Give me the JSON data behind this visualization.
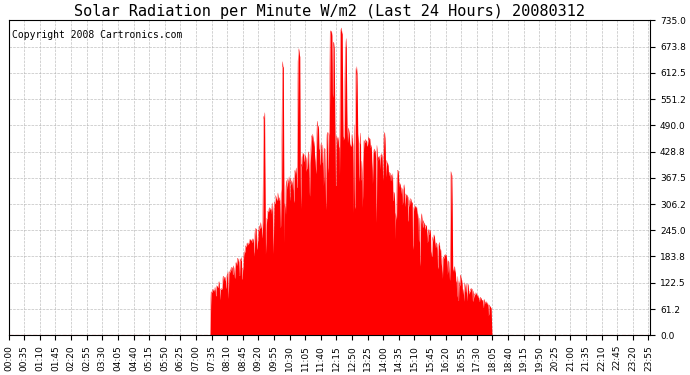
{
  "title": "Solar Radiation per Minute W/m2 (Last 24 Hours) 20080312",
  "copyright": "Copyright 2008 Cartronics.com",
  "yticks": [
    0.0,
    61.2,
    122.5,
    183.8,
    245.0,
    306.2,
    367.5,
    428.8,
    490.0,
    551.2,
    612.5,
    673.8,
    735.0
  ],
  "ymin": 0.0,
  "ymax": 735.0,
  "fill_color": "#ff0000",
  "line_color": "#ff0000",
  "dashed_line_color": "#ff0000",
  "grid_color": "#b0b0b0",
  "background_color": "#ffffff",
  "title_fontsize": 11,
  "copyright_fontsize": 7,
  "tick_fontsize": 6.5,
  "xtick_labels": [
    "00:00",
    "00:35",
    "01:10",
    "01:45",
    "02:20",
    "02:55",
    "03:30",
    "04:05",
    "04:40",
    "05:15",
    "05:50",
    "06:25",
    "07:00",
    "07:35",
    "08:10",
    "08:45",
    "09:20",
    "09:55",
    "10:30",
    "11:05",
    "11:40",
    "12:15",
    "12:50",
    "13:25",
    "14:00",
    "14:35",
    "15:10",
    "15:45",
    "16:20",
    "16:55",
    "17:30",
    "18:05",
    "18:40",
    "19:15",
    "19:50",
    "20:25",
    "21:00",
    "21:35",
    "22:10",
    "22:45",
    "23:20",
    "23:55"
  ],
  "n_minutes": 1440,
  "sunrise_hour": 7.55,
  "sunset_hour": 18.05,
  "peak_hour": 12.5,
  "peak_value": 490,
  "seed": 1234
}
